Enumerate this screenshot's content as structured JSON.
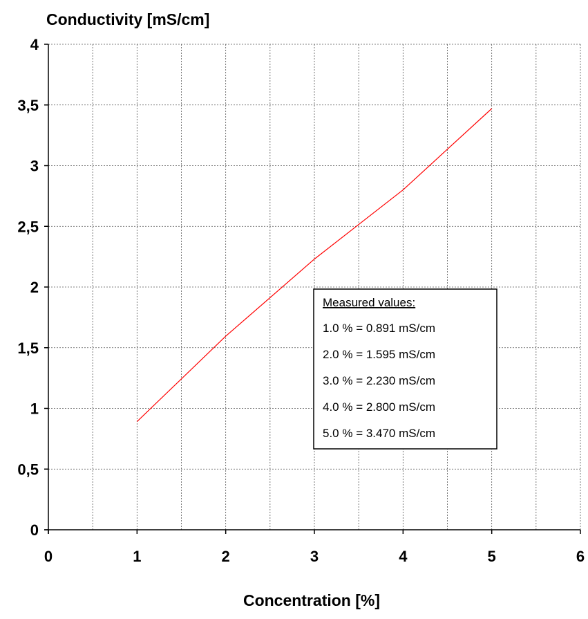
{
  "chart_data": {
    "type": "line",
    "ylabel": "Conductivity [mS/cm]",
    "xlabel": "Concentration [%]",
    "xlim": [
      0,
      6
    ],
    "ylim": [
      0,
      4
    ],
    "x_ticks": [
      "0",
      "1",
      "2",
      "3",
      "4",
      "5",
      "6"
    ],
    "y_ticks": [
      "0",
      "0,5",
      "1",
      "1,5",
      "2",
      "2,5",
      "3",
      "3,5",
      "4"
    ],
    "x_grid_step": 0.5,
    "y_grid_step": 0.5,
    "grid": true,
    "series": [
      {
        "color": "#ff0000",
        "x": [
          1,
          2,
          3,
          4,
          5
        ],
        "y": [
          0.891,
          1.595,
          2.23,
          2.8,
          3.47
        ]
      }
    ],
    "legend": {
      "title": "Measured values:",
      "entries": [
        "1.0 % = 0.891 mS/cm",
        "2.0 % = 1.595 mS/cm",
        "3.0 % = 2.230 mS/cm",
        "4.0 % = 2.800 mS/cm",
        "5.0 % = 3.470 mS/cm"
      ],
      "placement": "center-right"
    }
  }
}
